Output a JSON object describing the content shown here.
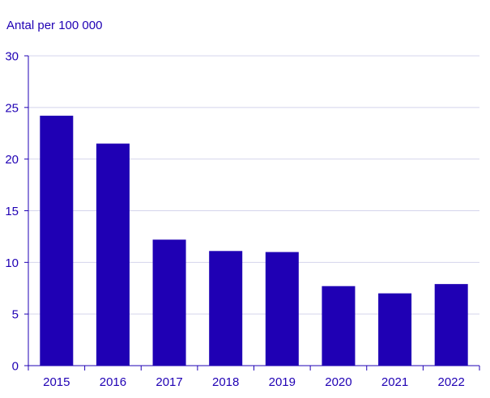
{
  "chart_data": {
    "type": "bar",
    "title": "",
    "ylabel": "Antal per 100 000",
    "xlabel": "",
    "categories": [
      "2015",
      "2016",
      "2017",
      "2018",
      "2019",
      "2020",
      "2021",
      "2022"
    ],
    "values": [
      24.2,
      21.5,
      12.2,
      11.1,
      11.0,
      7.7,
      7.0,
      7.9
    ],
    "ylim": [
      0,
      30
    ],
    "yticks": [
      "0",
      "5",
      "10",
      "15",
      "20",
      "25",
      "30"
    ],
    "grid": true,
    "legend": "none",
    "colors": {
      "bar": "#1f00b4",
      "text": "#1f00b4",
      "grid": "#d4d4ec",
      "axis": "#1f00b4"
    }
  }
}
